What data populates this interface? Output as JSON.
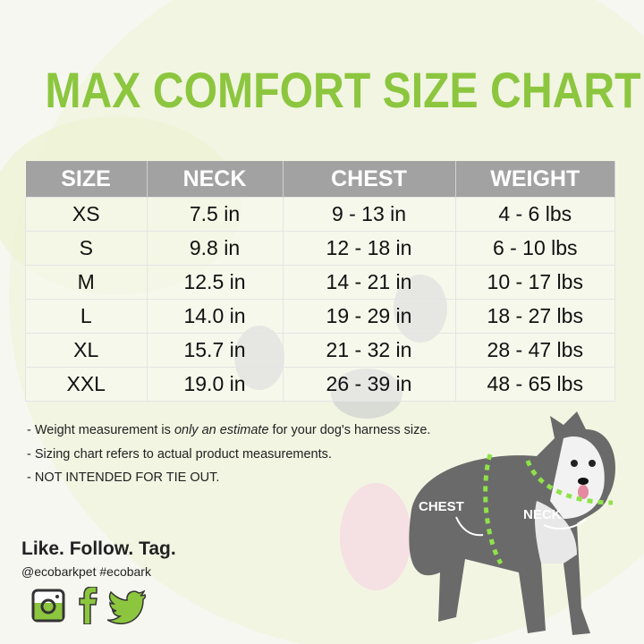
{
  "title": "MAX COMFORT SIZE CHART",
  "table": {
    "headers": [
      "SIZE",
      "NECK",
      "CHEST",
      "WEIGHT"
    ],
    "rows": [
      [
        "XS",
        "7.5 in",
        "9 - 13 in",
        "4 - 6 lbs"
      ],
      [
        "S",
        "9.8 in",
        "12 - 18 in",
        "6 - 10 lbs"
      ],
      [
        "M",
        "12.5 in",
        "14 - 21 in",
        "10 - 17 lbs"
      ],
      [
        "L",
        "14.0 in",
        "19 - 29 in",
        "18 - 27 lbs"
      ],
      [
        "XL",
        "15.7 in",
        "21 - 32 in",
        "28 - 47 lbs"
      ],
      [
        "XXL",
        "19.0 in",
        "26 - 39 in",
        "48 - 65 lbs"
      ]
    ]
  },
  "notes": {
    "n1_pre": "- Weight measurement is ",
    "n1_em": "only an estimate",
    "n1_post": " for your dog's harness size.",
    "n2": "- Sizing chart refers to actual product measurements.",
    "n3": "- NOT INTENDED FOR TIE OUT."
  },
  "social": {
    "heading": "Like. Follow. Tag.",
    "tags": "@ecobarkpet  #ecobark",
    "icons": [
      "instagram-icon",
      "facebook-icon",
      "twitter-icon"
    ]
  },
  "dog": {
    "chest_label": "CHEST",
    "neck_label": "NECK"
  },
  "colors": {
    "accent": "#8cc63f",
    "header_bg": "#a2a2a2"
  }
}
